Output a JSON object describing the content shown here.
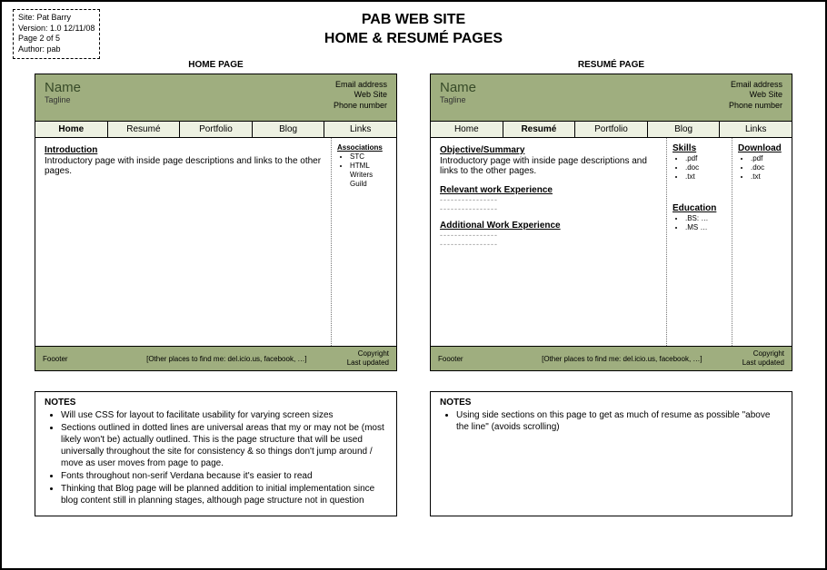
{
  "meta": {
    "site": "Site: Pat Barry",
    "version": "Version: 1.0 12/11/08",
    "page": "Page 2 of 5",
    "author": "Author: pab"
  },
  "title": {
    "line1": "PAB WEB SITE",
    "line2": "HOME & RESUMÉ PAGES"
  },
  "colors": {
    "header_bg": "#9fae7f",
    "nav_inactive_bg": "#edf1e2",
    "footer_bg": "#9fae7f"
  },
  "home": {
    "label": "HOME PAGE",
    "name": "Name",
    "tagline": "Tagline",
    "contact": {
      "email": "Email address",
      "web": "Web Site",
      "phone": "Phone number"
    },
    "nav": [
      "Home",
      "Resumé",
      "Portfolio",
      "Blog",
      "Links"
    ],
    "active_nav": 0,
    "intro_h": "Introduction",
    "intro_body": "Introductory page with inside page descriptions and links to the other pages.",
    "side": {
      "assoc_h": "Associations",
      "assoc_items": [
        "STC",
        "HTML Writers Guild"
      ]
    },
    "footer": {
      "left": "Foooter",
      "mid": "[Other places to find me: del.icio.us, facebook, …]",
      "r1": "Copyright",
      "r2": "Last updated"
    }
  },
  "resume": {
    "label": "RESUMÉ PAGE",
    "name": "Name",
    "tagline": "Tagline",
    "contact": {
      "email": "Email address",
      "web": "Web Site",
      "phone": "Phone number"
    },
    "nav": [
      "Home",
      "Resumé",
      "Portfolio",
      "Blog",
      "Links"
    ],
    "active_nav": 1,
    "obj_h": "Objective/Summary",
    "obj_body": "Introductory page with inside page descriptions and links to the other pages.",
    "rel_h": "Relevant work Experience",
    "add_h": "Additional Work Experience",
    "skills_h": "Skills",
    "skills_items": [
      ".pdf",
      ".doc",
      ".txt"
    ],
    "edu_h": "Education",
    "edu_items": [
      ".BS: …",
      ".MS …"
    ],
    "dl_h": "Download",
    "dl_items": [
      ".pdf",
      ".doc",
      ".txt"
    ],
    "footer": {
      "left": "Foooter",
      "mid": "[Other places to find me: del.icio.us, facebook, …]",
      "r1": "Copyright",
      "r2": "Last updated"
    }
  },
  "notes_left": {
    "h": "NOTES",
    "items": [
      "Will use CSS for layout to facilitate usability for varying screen sizes",
      "Sections outlined in dotted lines are universal areas that my or may not be (most likely won't be) actually outlined. This is the page structure that will be used universally throughout the site for consistency & so things don't jump around / move as user moves from page to page.",
      "Fonts throughout non-serif Verdana because it's easier to read",
      "Thinking that Blog page will be planned addition to initial implementation since blog content still in planning stages, although page structure not in question"
    ]
  },
  "notes_right": {
    "h": "NOTES",
    "items": [
      "Using side sections on this page to get as much of resume as possible \"above the line\" (avoids scrolling)"
    ]
  }
}
